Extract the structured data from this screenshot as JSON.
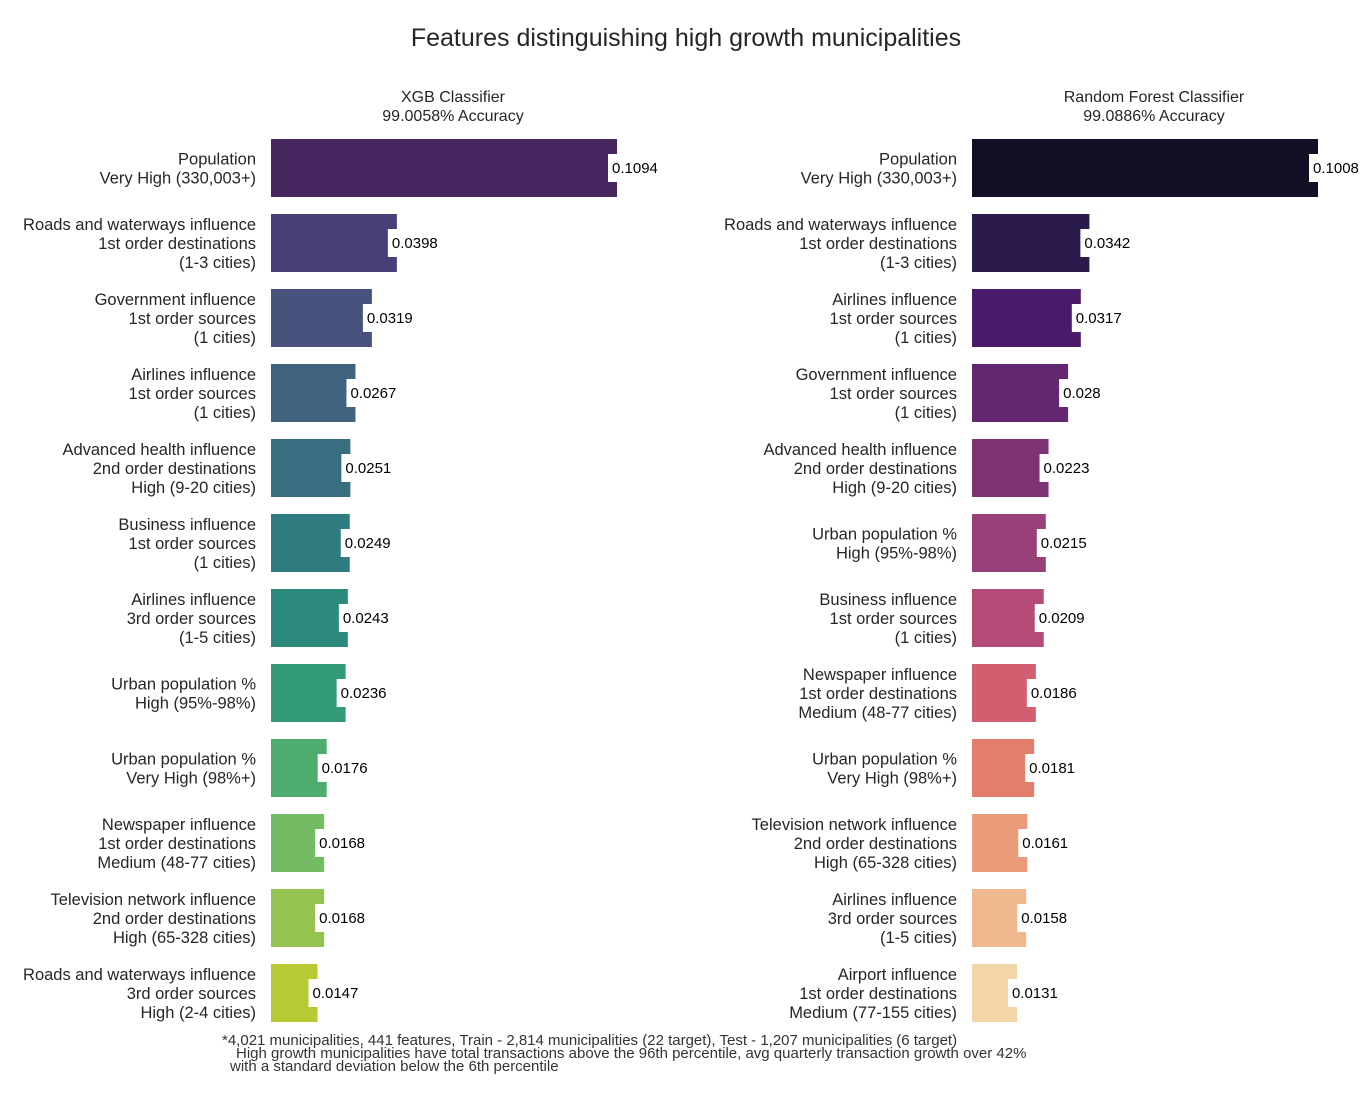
{
  "chart_data": {
    "title": "Features distinguishing high growth municipalities",
    "type": "bar",
    "orientation": "horizontal",
    "panels": [
      {
        "title_lines": [
          "XGB Classifier",
          "99.0058% Accuracy"
        ],
        "xlim": [
          0,
          0.1094
        ],
        "bars": [
          {
            "label": [
              "Population",
              "Very High (330,003+)"
            ],
            "value": 0.1094,
            "value_label": "0.1094",
            "color": "#46265f"
          },
          {
            "label": [
              "Roads and waterways influence",
              "1st order destinations",
              "(1-3 cities)"
            ],
            "value": 0.0398,
            "value_label": "0.0398",
            "color": "#4a3e78"
          },
          {
            "label": [
              "Government influence",
              "1st order sources",
              "(1 cities)"
            ],
            "value": 0.0319,
            "value_label": "0.0319",
            "color": "#47527c"
          },
          {
            "label": [
              "Airlines influence",
              "1st order sources",
              "(1 cities)"
            ],
            "value": 0.0267,
            "value_label": "0.0267",
            "color": "#3f637f"
          },
          {
            "label": [
              "Advanced health influence",
              "2nd order destinations",
              "High (9-20 cities)"
            ],
            "value": 0.0251,
            "value_label": "0.0251",
            "color": "#376f80"
          },
          {
            "label": [
              "Business influence",
              "1st order sources",
              "(1 cities)"
            ],
            "value": 0.0249,
            "value_label": "0.0249",
            "color": "#2f7c81"
          },
          {
            "label": [
              "Airlines influence",
              "3rd order sources",
              "(1-5 cities)"
            ],
            "value": 0.0243,
            "value_label": "0.0243",
            "color": "#2c8a7d"
          },
          {
            "label": [
              "Urban population %",
              "High (95%-98%)"
            ],
            "value": 0.0236,
            "value_label": "0.0236",
            "color": "#349b79"
          },
          {
            "label": [
              "Urban population %",
              "Very High (98%+)"
            ],
            "value": 0.0176,
            "value_label": "0.0176",
            "color": "#4fac6f"
          },
          {
            "label": [
              "Newspaper influence",
              "1st order destinations",
              "Medium (48-77 cities)"
            ],
            "value": 0.0168,
            "value_label": "0.0168",
            "color": "#73bc63"
          },
          {
            "label": [
              "Television network influence",
              "2nd order destinations",
              "High (65-328 cities)"
            ],
            "value": 0.0168,
            "value_label": "0.0168",
            "color": "#94c44f"
          },
          {
            "label": [
              "Roads and waterways influence",
              "3rd order sources",
              "High (2-4 cities)"
            ],
            "value": 0.0147,
            "value_label": "0.0147",
            "color": "#b7c933"
          }
        ]
      },
      {
        "title_lines": [
          "Random Forest Classifier",
          "99.0886% Accuracy"
        ],
        "xlim": [
          0,
          0.1008
        ],
        "bars": [
          {
            "label": [
              "Population",
              "Very High (330,003+)"
            ],
            "value": 0.1008,
            "value_label": "0.1008",
            "color": "#110f24"
          },
          {
            "label": [
              "Roads and waterways influence",
              "1st order destinations",
              "(1-3 cities)"
            ],
            "value": 0.0342,
            "value_label": "0.0342",
            "color": "#2b1a4c"
          },
          {
            "label": [
              "Airlines influence",
              "1st order sources",
              "(1 cities)"
            ],
            "value": 0.0317,
            "value_label": "0.0317",
            "color": "#4a1b6a"
          },
          {
            "label": [
              "Government influence",
              "1st order sources",
              "(1 cities)"
            ],
            "value": 0.028,
            "value_label": "0.028",
            "color": "#632671"
          },
          {
            "label": [
              "Advanced health influence",
              "2nd order destinations",
              "High (9-20 cities)"
            ],
            "value": 0.0223,
            "value_label": "0.0223",
            "color": "#7d3373"
          },
          {
            "label": [
              "Urban population %",
              "High (95%-98%)"
            ],
            "value": 0.0215,
            "value_label": "0.0215",
            "color": "#99407a"
          },
          {
            "label": [
              "Business influence",
              "1st order sources",
              "(1 cities)"
            ],
            "value": 0.0209,
            "value_label": "0.0209",
            "color": "#b54c78"
          },
          {
            "label": [
              "Newspaper influence",
              "1st order destinations",
              "Medium (48-77 cities)"
            ],
            "value": 0.0186,
            "value_label": "0.0186",
            "color": "#d25f70"
          },
          {
            "label": [
              "Urban population %",
              "Very High (98%+)"
            ],
            "value": 0.0181,
            "value_label": "0.0181",
            "color": "#e37d6c"
          },
          {
            "label": [
              "Television network influence",
              "2nd order destinations",
              "High (65-328 cities)"
            ],
            "value": 0.0161,
            "value_label": "0.0161",
            "color": "#ea9b79"
          },
          {
            "label": [
              "Airlines influence",
              "3rd order sources",
              "(1-5 cities)"
            ],
            "value": 0.0158,
            "value_label": "0.0158",
            "color": "#efb88e"
          },
          {
            "label": [
              "Airport influence",
              "1st order destinations",
              "Medium (77-155 cities)"
            ],
            "value": 0.0131,
            "value_label": "0.0131",
            "color": "#f2d6a8"
          }
        ]
      }
    ],
    "footnotes": [
      "*4,021 municipalities, 441 features, Train - 2,814 municipalities (22 target), Test - 1,207 municipalities (6 target)",
      "High growth municipalities have total transactions above the 96th percentile, avg quarterly transaction growth over 42%",
      "with a standard deviation below the 6th percentile"
    ]
  }
}
